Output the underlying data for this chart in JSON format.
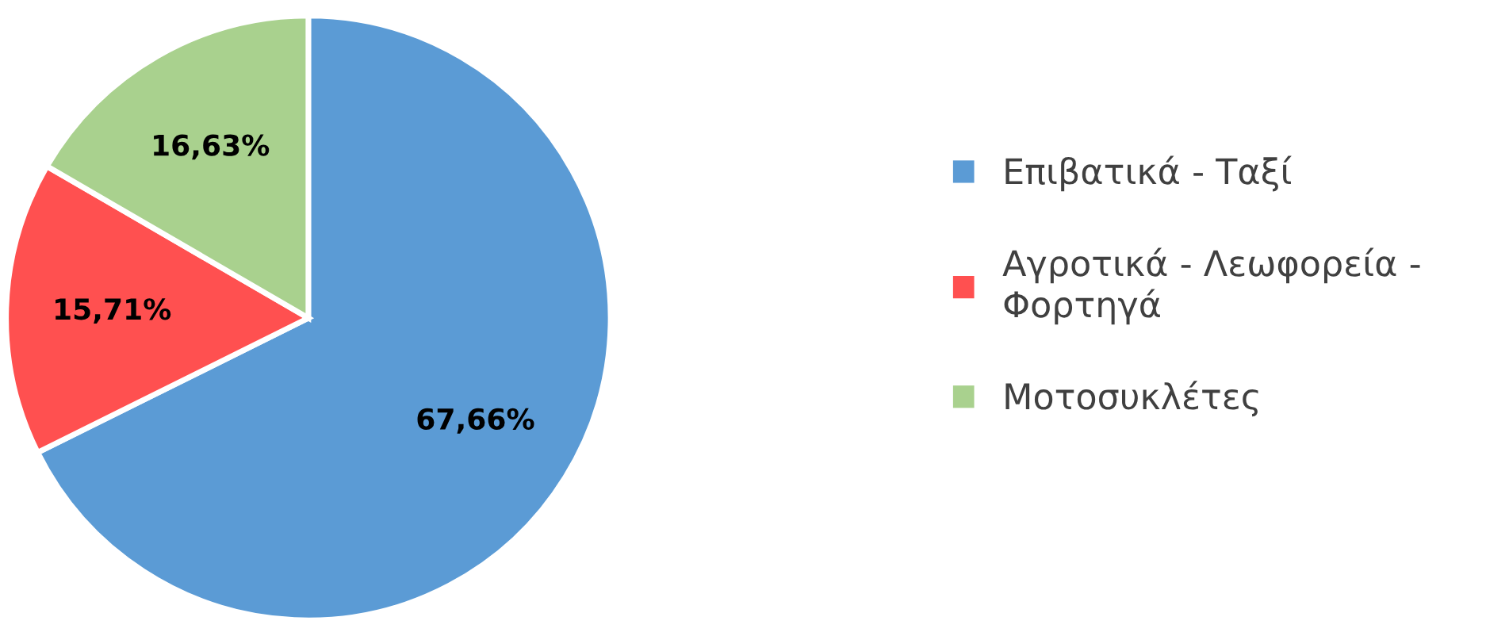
{
  "chart_data": {
    "type": "pie",
    "categories": [
      "Επιβατικά - Ταξί",
      "Αγροτικά - Λεωφορεία - Φορτηγά",
      "Μοτοσυκλέτες"
    ],
    "values": [
      67.66,
      15.71,
      16.63
    ],
    "colors": [
      "#5b9bd5",
      "#ff5050",
      "#a9d18e"
    ],
    "value_labels": [
      "67,66%",
      "15,71%",
      "16,63%"
    ],
    "legend": "right"
  }
}
